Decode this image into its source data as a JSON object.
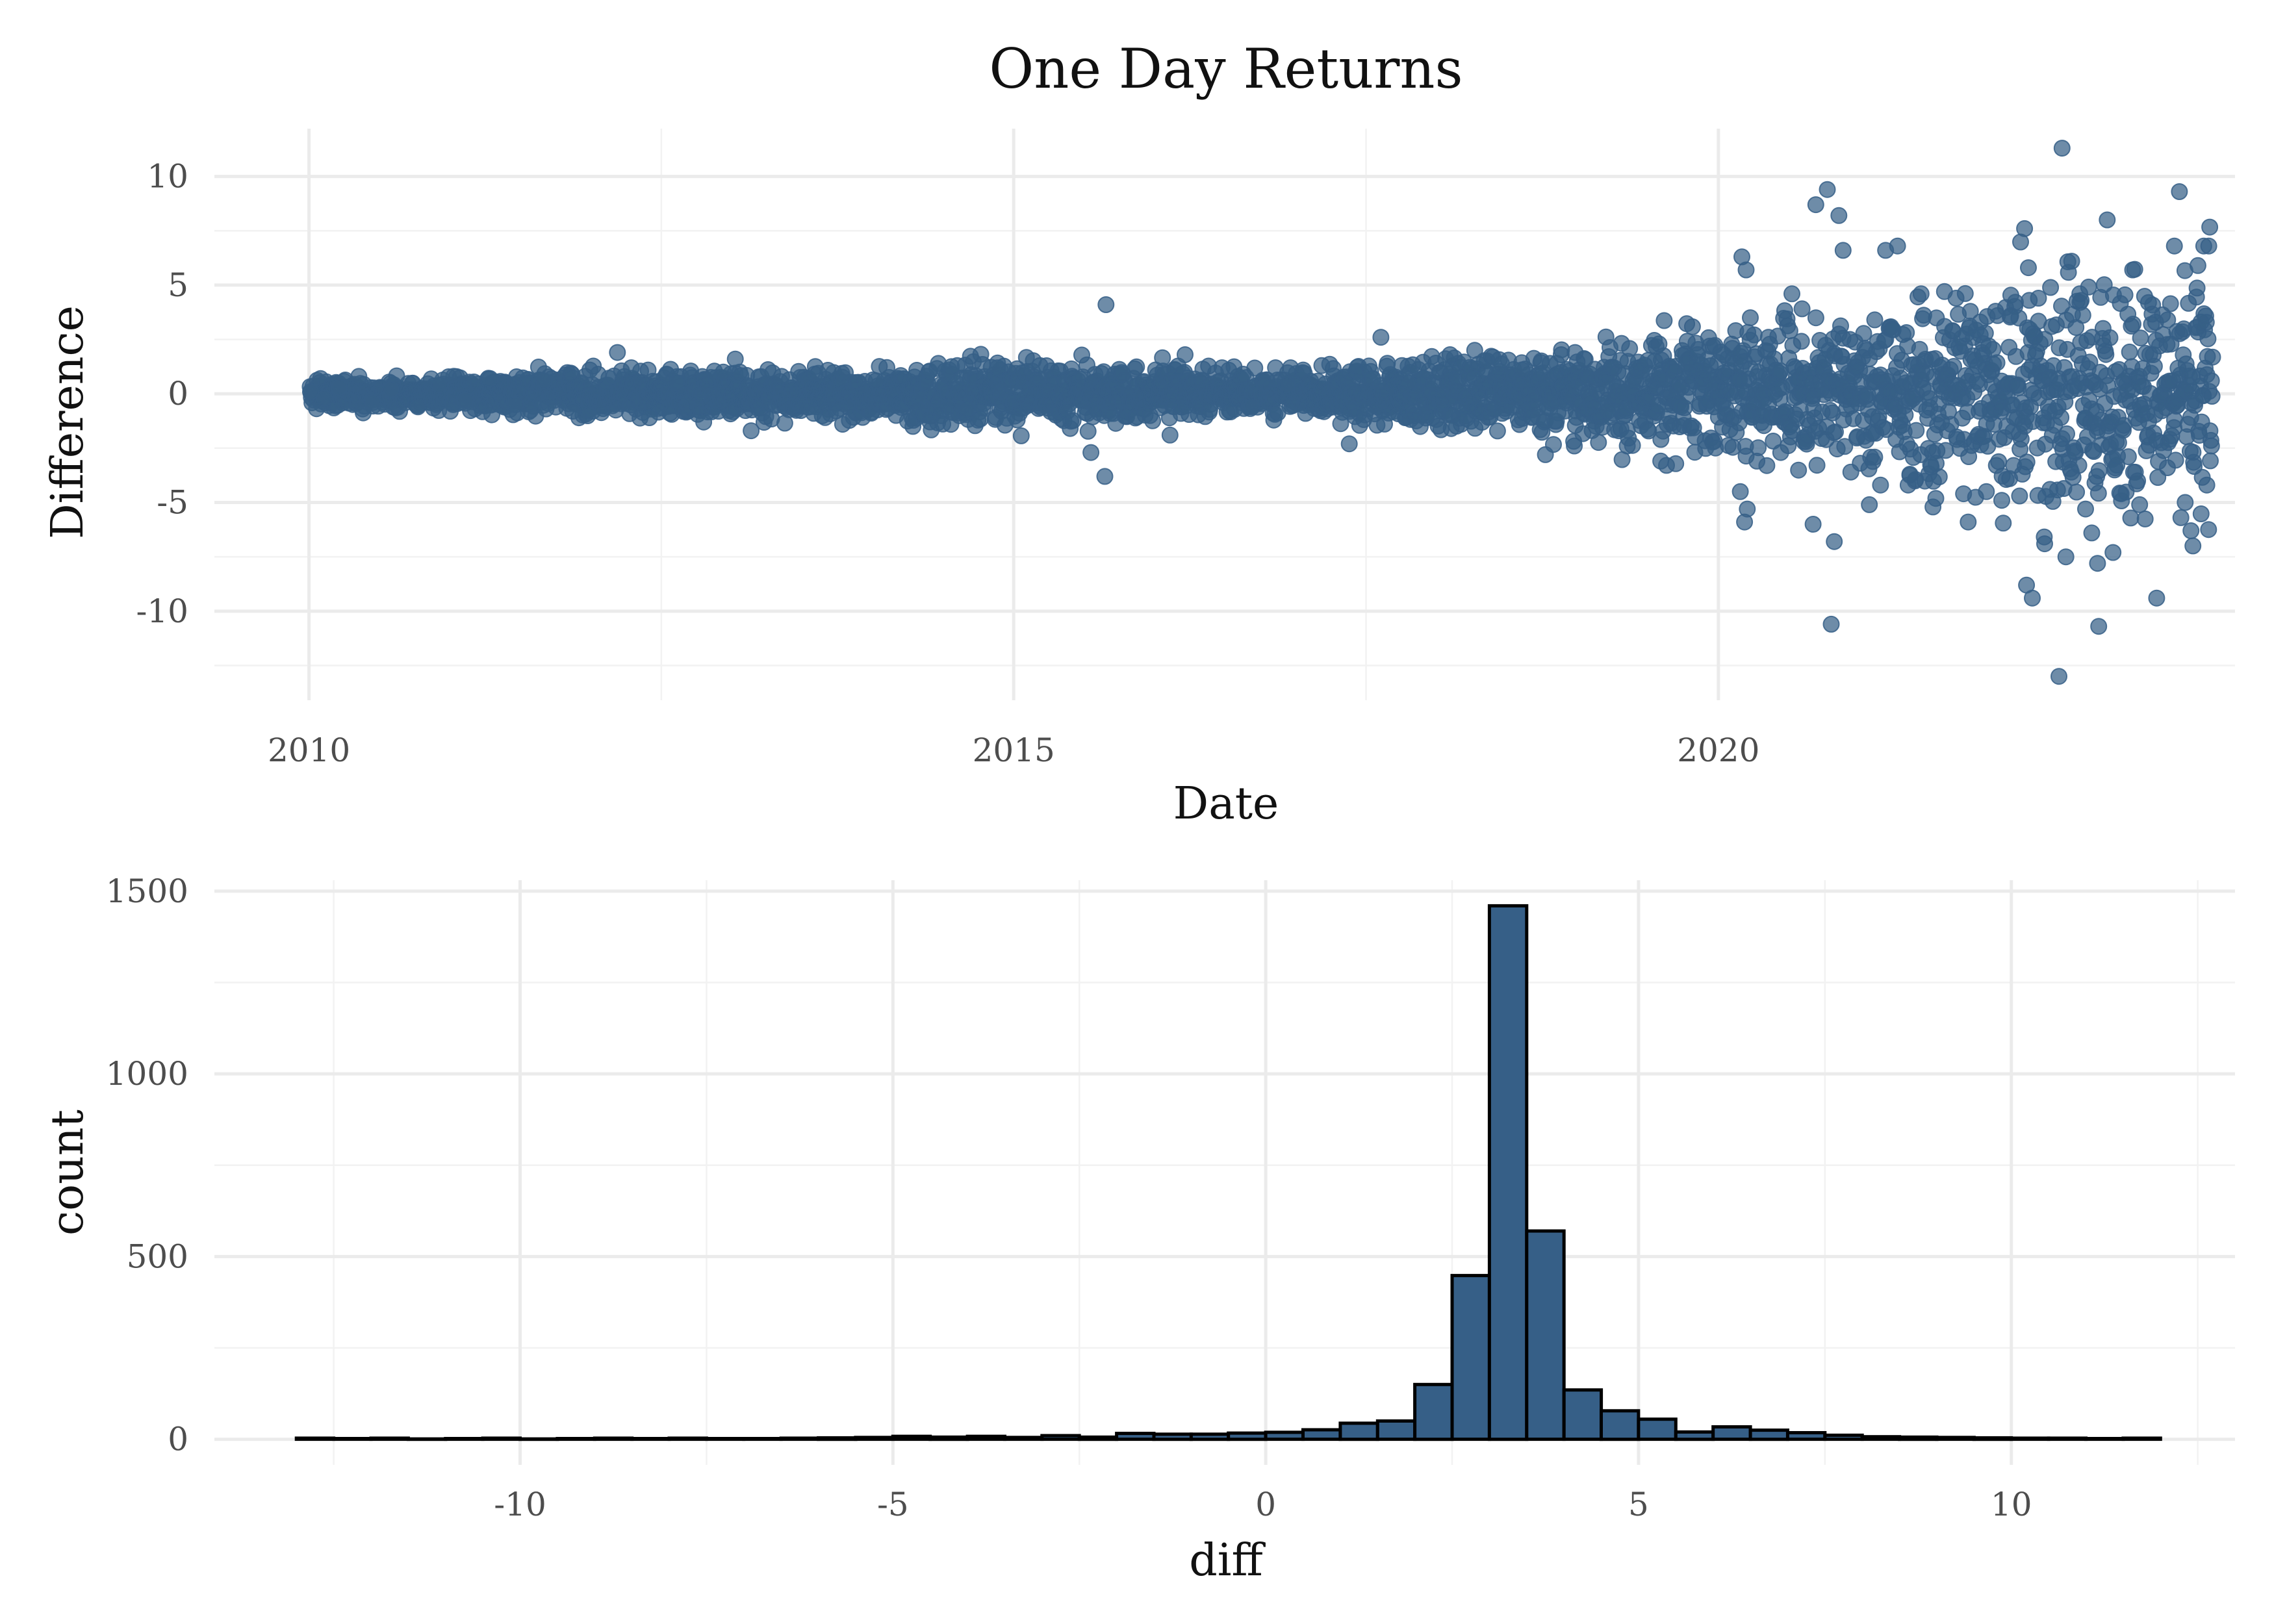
{
  "title": "One Day Returns",
  "colors": {
    "fill": "#365f87",
    "outline": "#000000",
    "grid": "#ebebeb",
    "background": "#ffffff"
  },
  "chart_data": [
    {
      "type": "scatter",
      "xlabel": "Date",
      "ylabel": "Difference",
      "x_ticks": [
        "2010",
        "2015",
        "2020"
      ],
      "y_ticks": [
        "10",
        "5",
        "0",
        "-5",
        "-10"
      ],
      "xlim": [
        "2009-05-01",
        "2023-09-01"
      ],
      "ylim": [
        -14.1,
        12.2
      ],
      "grid": true,
      "sample_points": [
        {
          "x": "2010-01-05",
          "y": 0.1
        },
        {
          "x": "2010-02-10",
          "y": -0.2
        },
        {
          "x": "2010-03-20",
          "y": 0.3
        },
        {
          "x": "2010-05-10",
          "y": 0.8
        },
        {
          "x": "2010-06-15",
          "y": -0.4
        },
        {
          "x": "2010-08-01",
          "y": 0.2
        },
        {
          "x": "2010-10-10",
          "y": -0.6
        },
        {
          "x": "2010-12-05",
          "y": 0.4
        },
        {
          "x": "2011-02-10",
          "y": -0.3
        },
        {
          "x": "2011-04-15",
          "y": 0.7
        },
        {
          "x": "2011-06-20",
          "y": -0.5
        },
        {
          "x": "2011-09-01",
          "y": 0.6
        },
        {
          "x": "2011-11-15",
          "y": -0.8
        },
        {
          "x": "2012-01-20",
          "y": 0.9
        },
        {
          "x": "2012-03-10",
          "y": 1.9
        },
        {
          "x": "2012-04-15",
          "y": 1.2
        },
        {
          "x": "2012-06-01",
          "y": -1.1
        },
        {
          "x": "2012-08-10",
          "y": 0.5
        },
        {
          "x": "2012-10-20",
          "y": -1.3
        },
        {
          "x": "2012-12-10",
          "y": 1.0
        },
        {
          "x": "2013-01-10",
          "y": 1.6
        },
        {
          "x": "2013-02-20",
          "y": -1.7
        },
        {
          "x": "2013-05-10",
          "y": 0.8
        },
        {
          "x": "2013-08-01",
          "y": -0.9
        },
        {
          "x": "2013-10-15",
          "y": -1.4
        },
        {
          "x": "2014-01-10",
          "y": 0.6
        },
        {
          "x": "2014-04-15",
          "y": -1.5
        },
        {
          "x": "2014-06-20",
          "y": 1.4
        },
        {
          "x": "2014-09-01",
          "y": -0.7
        },
        {
          "x": "2014-11-20",
          "y": 1.2
        },
        {
          "x": "2015-01-10",
          "y": -1.2
        },
        {
          "x": "2015-03-10",
          "y": 1.3
        },
        {
          "x": "2015-05-20",
          "y": -0.8
        },
        {
          "x": "2015-07-20",
          "y": -2.7
        },
        {
          "x": "2015-08-25",
          "y": -3.8
        },
        {
          "x": "2015-08-28",
          "y": 4.1
        },
        {
          "x": "2015-10-10",
          "y": 0.9
        },
        {
          "x": "2015-12-20",
          "y": -1.0
        },
        {
          "x": "2016-02-10",
          "y": -1.9
        },
        {
          "x": "2016-03-20",
          "y": 1.8
        },
        {
          "x": "2016-06-24",
          "y": 1.2
        },
        {
          "x": "2016-09-10",
          "y": -0.6
        },
        {
          "x": "2016-12-10",
          "y": 0.4
        },
        {
          "x": "2017-03-10",
          "y": 1.3
        },
        {
          "x": "2017-05-20",
          "y": -2.3
        },
        {
          "x": "2017-08-10",
          "y": 2.6
        },
        {
          "x": "2017-10-20",
          "y": 0.5
        },
        {
          "x": "2018-02-05",
          "y": 1.8
        },
        {
          "x": "2018-02-08",
          "y": -1.6
        },
        {
          "x": "2018-04-10",
          "y": 2.0
        },
        {
          "x": "2018-06-20",
          "y": -0.9
        },
        {
          "x": "2018-08-10",
          "y": 1.1
        },
        {
          "x": "2018-10-10",
          "y": -2.8
        },
        {
          "x": "2018-11-20",
          "y": 1.8
        },
        {
          "x": "2018-12-24",
          "y": -2.4
        },
        {
          "x": "2018-12-26",
          "y": 1.9
        },
        {
          "x": "2019-03-20",
          "y": -0.8
        },
        {
          "x": "2019-05-10",
          "y": -2.4
        },
        {
          "x": "2019-07-20",
          "y": 1.5
        },
        {
          "x": "2019-08-05",
          "y": -2.1
        },
        {
          "x": "2019-10-10",
          "y": 1.4
        },
        {
          "x": "2019-12-20",
          "y": -0.6
        },
        {
          "x": "2020-01-15",
          "y": 1.8
        },
        {
          "x": "2020-02-27",
          "y": -4.5
        },
        {
          "x": "2020-03-02",
          "y": 6.3
        },
        {
          "x": "2020-03-09",
          "y": -5.9
        },
        {
          "x": "2020-03-13",
          "y": 5.7
        },
        {
          "x": "2020-03-16",
          "y": -5.3
        },
        {
          "x": "2020-03-24",
          "y": 3.5
        },
        {
          "x": "2020-04-10",
          "y": -3.1
        },
        {
          "x": "2020-05-10",
          "y": 2.6
        },
        {
          "x": "2020-06-11",
          "y": -2.7
        },
        {
          "x": "2020-07-10",
          "y": 4.6
        },
        {
          "x": "2020-08-10",
          "y": -2.2
        },
        {
          "x": "2020-09-03",
          "y": -6.0
        },
        {
          "x": "2020-09-10",
          "y": 8.7
        },
        {
          "x": "2020-10-10",
          "y": 9.4
        },
        {
          "x": "2020-10-20",
          "y": -10.6
        },
        {
          "x": "2020-10-28",
          "y": -6.8
        },
        {
          "x": "2020-11-09",
          "y": 8.2
        },
        {
          "x": "2020-11-20",
          "y": 6.6
        },
        {
          "x": "2020-12-10",
          "y": -3.6
        },
        {
          "x": "2021-01-27",
          "y": -5.1
        },
        {
          "x": "2021-02-10",
          "y": 3.4
        },
        {
          "x": "2021-02-25",
          "y": -4.2
        },
        {
          "x": "2021-03-10",
          "y": 6.6
        },
        {
          "x": "2021-04-10",
          "y": 6.8
        },
        {
          "x": "2021-05-12",
          "y": -3.7
        },
        {
          "x": "2021-06-10",
          "y": 4.6
        },
        {
          "x": "2021-07-19",
          "y": -3.2
        },
        {
          "x": "2021-08-10",
          "y": 3.1
        },
        {
          "x": "2021-09-28",
          "y": -4.6
        },
        {
          "x": "2021-10-10",
          "y": -5.9
        },
        {
          "x": "2021-11-10",
          "y": 3.3
        },
        {
          "x": "2021-11-26",
          "y": -4.5
        },
        {
          "x": "2021-12-20",
          "y": 3.8
        },
        {
          "x": "2022-01-05",
          "y": -4.9
        },
        {
          "x": "2022-01-28",
          "y": 3.6
        },
        {
          "x": "2022-02-20",
          "y": -4.7
        },
        {
          "x": "2022-03-05",
          "y": 7.6
        },
        {
          "x": "2022-03-10",
          "y": -8.8
        },
        {
          "x": "2022-03-15",
          "y": 5.8
        },
        {
          "x": "2022-03-25",
          "y": -9.4
        },
        {
          "x": "2022-04-10",
          "y": 4.4
        },
        {
          "x": "2022-04-26",
          "y": -6.9
        },
        {
          "x": "2022-05-10",
          "y": -4.4
        },
        {
          "x": "2022-06-02",
          "y": -13.0
        },
        {
          "x": "2022-06-10",
          "y": 11.3
        },
        {
          "x": "2022-06-20",
          "y": -7.5
        },
        {
          "x": "2022-07-05",
          "y": 6.1
        },
        {
          "x": "2022-07-26",
          "y": 4.6
        },
        {
          "x": "2022-08-10",
          "y": -5.3
        },
        {
          "x": "2022-08-26",
          "y": -6.4
        },
        {
          "x": "2022-09-10",
          "y": -7.8
        },
        {
          "x": "2022-09-13",
          "y": -10.7
        },
        {
          "x": "2022-10-05",
          "y": 8.0
        },
        {
          "x": "2022-10-20",
          "y": -7.3
        },
        {
          "x": "2022-11-10",
          "y": -4.6
        },
        {
          "x": "2022-12-10",
          "y": 5.7
        },
        {
          "x": "2022-12-28",
          "y": -5.1
        },
        {
          "x": "2023-01-20",
          "y": 4.2
        },
        {
          "x": "2023-02-10",
          "y": -9.4
        },
        {
          "x": "2023-03-10",
          "y": -3.4
        },
        {
          "x": "2023-03-28",
          "y": 6.8
        },
        {
          "x": "2023-04-10",
          "y": 9.3
        },
        {
          "x": "2023-04-25",
          "y": -5.0
        },
        {
          "x": "2023-05-10",
          "y": -6.3
        },
        {
          "x": "2023-05-15",
          "y": -7.0
        },
        {
          "x": "2023-05-28",
          "y": 5.9
        },
        {
          "x": "2023-06-05",
          "y": 3.3
        },
        {
          "x": "2023-06-12",
          "y": 6.8
        },
        {
          "x": "2023-06-20",
          "y": -4.2
        },
        {
          "x": "2023-06-25",
          "y": 6.8
        },
        {
          "x": "2023-06-28",
          "y": -1.7
        },
        {
          "x": "2023-07-02",
          "y": 0.6
        }
      ]
    },
    {
      "type": "bar",
      "subtype": "histogram",
      "xlabel": "diff",
      "ylabel": "count",
      "x_ticks": [
        "-10",
        "-5",
        "0",
        "5",
        "10"
      ],
      "y_ticks": [
        "0",
        "500",
        "1000",
        "1500"
      ],
      "xlim": [
        -14.1,
        13.0
      ],
      "ylim": [
        -70,
        1530
      ],
      "grid": true,
      "bin_start": -13.0,
      "bin_width": 0.5,
      "counts": [
        3,
        2,
        3,
        1,
        2,
        3,
        1,
        2,
        3,
        2,
        3,
        2,
        2,
        3,
        4,
        5,
        8,
        6,
        8,
        5,
        10,
        6,
        16,
        14,
        14,
        17,
        19,
        26,
        44,
        50,
        150,
        448,
        1460,
        570,
        135,
        78,
        55,
        20,
        34,
        25,
        18,
        11,
        7,
        6,
        5,
        4,
        3,
        3,
        2,
        3
      ]
    }
  ]
}
